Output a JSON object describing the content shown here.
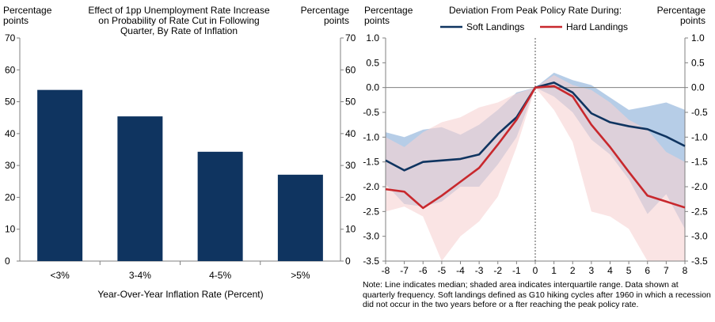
{
  "chart_data": [
    {
      "type": "bar",
      "title_lines": [
        "Effect of 1pp Unemployment Rate Increase",
        "on Probability of Rate Cut in Following",
        "Quarter, By Rate of Inflation"
      ],
      "ylabel_left_lines": [
        "Percentage",
        "points"
      ],
      "ylabel_right_lines": [
        "Percentage",
        "points"
      ],
      "xlabel": "Year-Over-Year  Inflation Rate (Percent)",
      "categories": [
        "<3%",
        "3-4%",
        "4-5%",
        ">5%"
      ],
      "values": [
        53.7,
        45.4,
        34.3,
        27.1
      ],
      "ylim": [
        0,
        70
      ],
      "yticks": [
        0,
        10,
        20,
        30,
        40,
        50,
        60,
        70
      ],
      "bar_color": "#0f3460"
    },
    {
      "type": "line",
      "title": "Deviation From Peak Policy Rate During:",
      "ylabel_left_lines": [
        "Percentage",
        "points"
      ],
      "ylabel_right_lines": [
        "Percentage",
        "points"
      ],
      "x": [
        -8,
        -7,
        -6,
        -5,
        -4,
        -3,
        -2,
        -1,
        0,
        1,
        2,
        3,
        4,
        5,
        6,
        7,
        8
      ],
      "ylim": [
        -3.5,
        1.0
      ],
      "yticks": [
        -3.5,
        -3.0,
        -2.5,
        -2.0,
        -1.5,
        -1.0,
        -0.5,
        0.0,
        0.5,
        1.0
      ],
      "series": [
        {
          "name": "Soft Landings",
          "color": "#0f3460",
          "values": [
            -1.47,
            -1.67,
            -1.5,
            -1.47,
            -1.44,
            -1.35,
            -0.94,
            -0.6,
            0.0,
            0.1,
            -0.1,
            -0.52,
            -0.7,
            -0.78,
            -0.84,
            -0.99,
            -1.18
          ],
          "band_upper": [
            -0.9,
            -1.0,
            -0.85,
            -0.8,
            -0.95,
            -0.75,
            -0.45,
            -0.1,
            0.0,
            0.3,
            0.15,
            0.05,
            -0.2,
            -0.45,
            -0.38,
            -0.3,
            -0.45
          ],
          "band_lower": [
            -1.95,
            -2.35,
            -2.4,
            -2.3,
            -2.0,
            -2.0,
            -1.55,
            -1.0,
            0.0,
            -0.18,
            -0.5,
            -1.05,
            -1.35,
            -1.85,
            -2.55,
            -2.15,
            -2.85
          ],
          "band_color": "#a9c4e3"
        },
        {
          "name": "Hard Landings",
          "color": "#c8282d",
          "values": [
            -2.05,
            -2.1,
            -2.43,
            -2.18,
            -1.9,
            -1.62,
            -1.15,
            -0.65,
            0.0,
            0.03,
            -0.18,
            -0.75,
            -1.2,
            -1.7,
            -2.18,
            -2.3,
            -2.42
          ],
          "band_upper": [
            -1.0,
            -1.2,
            -0.9,
            -0.7,
            -0.6,
            -0.4,
            -0.3,
            -0.12,
            0.0,
            0.25,
            0.05,
            -0.05,
            -0.3,
            -0.65,
            -0.85,
            -1.3,
            -1.5
          ],
          "band_lower": [
            -2.5,
            -2.4,
            -2.6,
            -3.5,
            -3.0,
            -2.7,
            -2.2,
            -1.2,
            0.0,
            -0.45,
            -1.1,
            -2.5,
            -2.6,
            -2.85,
            -3.5,
            -3.5,
            -3.5
          ],
          "band_color": "#f6d2d2"
        }
      ]
    }
  ],
  "note": "Note: Line indicates median;  shaded area indicates interquartile range. Data shown at quarterly frequency. Soft landings defined as G10 hiking cycles after 1960 in which a recession did not occur in the two years before or a fter reaching the peak policy rate."
}
